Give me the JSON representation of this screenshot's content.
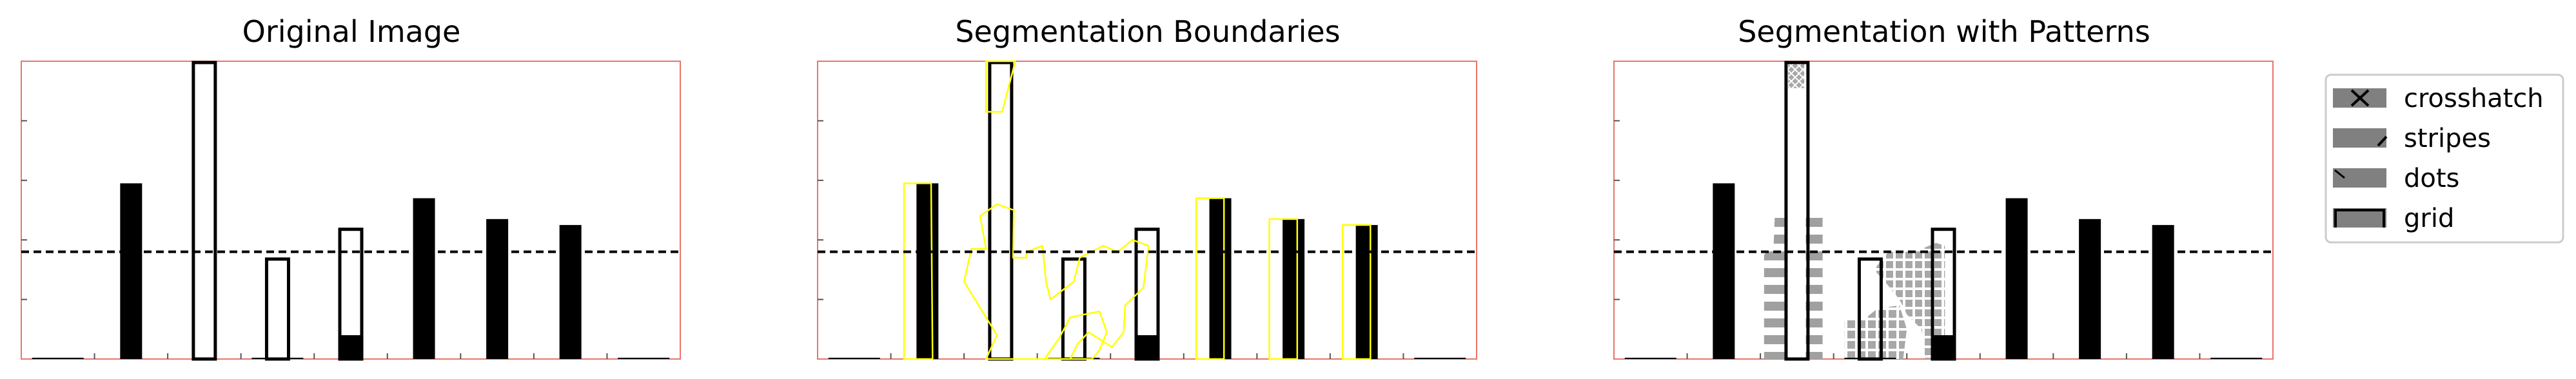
{
  "figure": {
    "legend": {
      "placement": "right",
      "entries": [
        {
          "label": "crosshatch",
          "pattern": "x"
        },
        {
          "label": "stripes",
          "pattern": "/"
        },
        {
          "label": "dots",
          "pattern": "."
        },
        {
          "label": "grid",
          "pattern": "+"
        }
      ]
    }
  },
  "colors": {
    "axes_spine": "#e8756a",
    "bar_filled": "#000000",
    "bar_outline": "#000000",
    "threshold_line": "#000000",
    "boundary": "#ffff00",
    "pattern_fill": "#a0a0a0",
    "legend_swatch": "#808080"
  },
  "chart_data": [
    {
      "type": "bar",
      "title": "Original Image",
      "xlabel": "",
      "ylabel": "",
      "ylim": [
        0,
        100
      ],
      "xlim": [
        0,
        9
      ],
      "grid": false,
      "tick_labels": false,
      "bars": [
        {
          "x": 0.5,
          "value": 0,
          "style": "baseline"
        },
        {
          "x": 1.5,
          "value": 59,
          "style": "filled"
        },
        {
          "x": 2.5,
          "value": 100,
          "style": "outline"
        },
        {
          "x": 3.5,
          "value": 0,
          "style": "baseline"
        },
        {
          "x": 3.5,
          "value": 34,
          "style": "outline"
        },
        {
          "x": 4.5,
          "value": 8,
          "style": "filled"
        },
        {
          "x": 4.5,
          "value": 44,
          "style": "outline"
        },
        {
          "x": 5.5,
          "value": 54,
          "style": "filled"
        },
        {
          "x": 6.5,
          "value": 47,
          "style": "filled"
        },
        {
          "x": 7.5,
          "value": 45,
          "style": "filled"
        },
        {
          "x": 8.5,
          "value": 0,
          "style": "baseline"
        }
      ],
      "threshold": 36
    },
    {
      "type": "bar",
      "title": "Segmentation Boundaries",
      "xlabel": "",
      "ylabel": "",
      "ylim": [
        0,
        100
      ],
      "xlim": [
        0,
        9
      ],
      "grid": false,
      "tick_labels": false,
      "bars": [
        {
          "x": 0.5,
          "value": 0,
          "style": "baseline"
        },
        {
          "x": 1.5,
          "value": 59,
          "style": "filled"
        },
        {
          "x": 2.5,
          "value": 100,
          "style": "outline"
        },
        {
          "x": 3.5,
          "value": 0,
          "style": "baseline"
        },
        {
          "x": 3.5,
          "value": 34,
          "style": "outline"
        },
        {
          "x": 4.5,
          "value": 8,
          "style": "filled"
        },
        {
          "x": 4.5,
          "value": 44,
          "style": "outline"
        },
        {
          "x": 5.5,
          "value": 54,
          "style": "filled"
        },
        {
          "x": 6.5,
          "value": 47,
          "style": "filled"
        },
        {
          "x": 7.5,
          "value": 45,
          "style": "filled"
        },
        {
          "x": 8.5,
          "value": 0,
          "style": "baseline"
        }
      ],
      "threshold": 36,
      "boundary_regions": [
        {
          "name": "bar-2",
          "points": [
            [
              1.18,
              0
            ],
            [
              1.18,
              59
            ],
            [
              1.55,
              59
            ],
            [
              1.57,
              0
            ]
          ]
        },
        {
          "name": "bar-3-top",
          "points": [
            [
              2.3,
              100
            ],
            [
              2.3,
              83
            ],
            [
              2.52,
              83
            ],
            [
              2.7,
              100
            ]
          ]
        },
        {
          "name": "mid-blob",
          "points": [
            [
              2.3,
              0
            ],
            [
              2.45,
              8
            ],
            [
              2.2,
              18
            ],
            [
              2.0,
              26
            ],
            [
              2.1,
              37
            ],
            [
              2.3,
              37
            ],
            [
              2.22,
              48
            ],
            [
              2.45,
              52
            ],
            [
              2.68,
              50
            ],
            [
              2.67,
              34
            ],
            [
              2.85,
              34
            ],
            [
              2.85,
              36
            ],
            [
              3.07,
              38
            ],
            [
              3.12,
              26
            ],
            [
              3.18,
              20
            ],
            [
              3.5,
              26
            ],
            [
              3.58,
              34
            ],
            [
              3.9,
              38
            ],
            [
              4.1,
              36
            ],
            [
              4.3,
              40
            ],
            [
              4.52,
              38
            ],
            [
              4.45,
              24
            ],
            [
              4.2,
              18
            ],
            [
              4.18,
              9
            ],
            [
              4.02,
              4
            ],
            [
              3.7,
              9
            ],
            [
              3.55,
              5
            ],
            [
              3.45,
              0
            ]
          ]
        },
        {
          "name": "lower-fill",
          "points": [
            [
              3.1,
              0
            ],
            [
              3.3,
              7
            ],
            [
              3.45,
              14
            ],
            [
              3.85,
              16
            ],
            [
              3.95,
              9
            ],
            [
              3.85,
              3
            ],
            [
              3.75,
              0
            ]
          ]
        },
        {
          "name": "bar-6",
          "points": [
            [
              5.17,
              0
            ],
            [
              5.17,
              54
            ],
            [
              5.55,
              54
            ],
            [
              5.55,
              0
            ]
          ]
        },
        {
          "name": "bar-7",
          "points": [
            [
              6.17,
              0
            ],
            [
              6.17,
              47
            ],
            [
              6.55,
              47
            ],
            [
              6.55,
              0
            ]
          ]
        },
        {
          "name": "bar-8",
          "points": [
            [
              7.17,
              0
            ],
            [
              7.17,
              45
            ],
            [
              7.55,
              45
            ],
            [
              7.55,
              0
            ]
          ]
        }
      ]
    },
    {
      "type": "bar",
      "title": "Segmentation with Patterns",
      "xlabel": "",
      "ylabel": "",
      "ylim": [
        0,
        100
      ],
      "xlim": [
        0,
        9
      ],
      "grid": false,
      "tick_labels": false,
      "bars": [
        {
          "x": 0.5,
          "value": 0,
          "style": "baseline"
        },
        {
          "x": 1.5,
          "value": 59,
          "style": "filled"
        },
        {
          "x": 2.5,
          "value": 100,
          "style": "outline"
        },
        {
          "x": 3.5,
          "value": 0,
          "style": "baseline"
        },
        {
          "x": 3.5,
          "value": 34,
          "style": "outline"
        },
        {
          "x": 4.5,
          "value": 8,
          "style": "filled"
        },
        {
          "x": 4.5,
          "value": 44,
          "style": "outline"
        },
        {
          "x": 5.5,
          "value": 54,
          "style": "filled"
        },
        {
          "x": 6.5,
          "value": 47,
          "style": "filled"
        },
        {
          "x": 7.5,
          "value": 45,
          "style": "filled"
        },
        {
          "x": 8.5,
          "value": 0,
          "style": "baseline"
        }
      ],
      "threshold": 36,
      "pattern_regions": [
        {
          "name": "crosshatch-top",
          "pattern": "crosshatch",
          "points": [
            [
              2.38,
              100
            ],
            [
              2.38,
              91
            ],
            [
              2.6,
              91
            ],
            [
              2.6,
              100
            ]
          ]
        },
        {
          "name": "stripes-left",
          "pattern": "stripes",
          "points": [
            [
              2.05,
              0
            ],
            [
              2.05,
              35
            ],
            [
              2.18,
              38
            ],
            [
              2.2,
              50
            ],
            [
              2.35,
              50
            ],
            [
              2.35,
              0
            ]
          ]
        },
        {
          "name": "stripes-block",
          "pattern": "stripes",
          "points": [
            [
              2.62,
              0
            ],
            [
              2.62,
              50
            ],
            [
              2.85,
              50
            ],
            [
              2.85,
              0
            ]
          ]
        },
        {
          "name": "dots-lower",
          "pattern": "dots",
          "points": [
            [
              3.15,
              0
            ],
            [
              3.15,
              13
            ],
            [
              3.4,
              13
            ],
            [
              3.6,
              17
            ],
            [
              3.9,
              18
            ],
            [
              4.0,
              10
            ],
            [
              3.95,
              0
            ]
          ]
        },
        {
          "name": "grid-right",
          "pattern": "grid",
          "points": [
            [
              3.55,
              30
            ],
            [
              3.75,
              36
            ],
            [
              4.1,
              36
            ],
            [
              4.4,
              39
            ],
            [
              4.52,
              38
            ],
            [
              4.52,
              0
            ],
            [
              4.25,
              0
            ],
            [
              4.2,
              10
            ],
            [
              4.0,
              15
            ],
            [
              3.9,
              20
            ],
            [
              3.7,
              26
            ]
          ]
        }
      ]
    }
  ]
}
